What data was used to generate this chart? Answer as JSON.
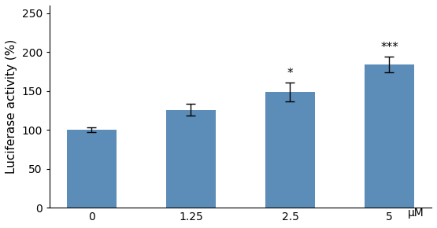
{
  "categories": [
    "0",
    "1.25",
    "2.5",
    "5"
  ],
  "values": [
    100,
    126,
    149,
    184
  ],
  "errors": [
    3,
    8,
    12,
    10
  ],
  "bar_color": "#5b8db8",
  "bar_width": 0.5,
  "ylabel": "Luciferase activity (%)",
  "xlabel": "μM",
  "ylim": [
    0,
    260
  ],
  "yticks": [
    0,
    50,
    100,
    150,
    200,
    250
  ],
  "significance": [
    "",
    "",
    "*",
    "***"
  ],
  "sig_fontsize": 11,
  "ylabel_fontsize": 11,
  "xlabel_fontsize": 10,
  "tick_fontsize": 10,
  "background_color": "#ffffff",
  "edge_color": "none",
  "capsize": 4
}
